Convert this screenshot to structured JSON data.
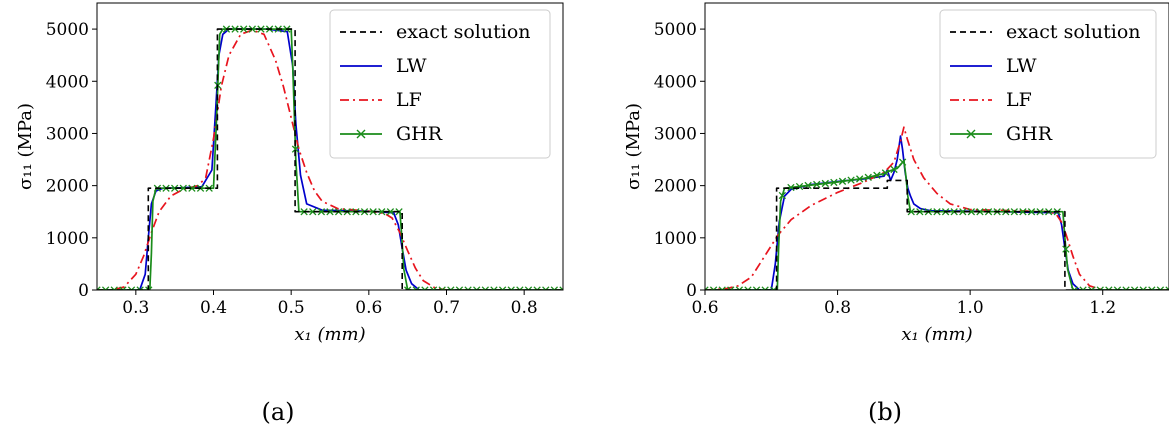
{
  "figure": {
    "panels": [
      {
        "label": "(a)"
      },
      {
        "label": "(b)"
      }
    ]
  },
  "chart_data": [
    {
      "type": "line",
      "panel": "(a)",
      "xlabel": "x₁ (mm)",
      "ylabel": "σ₁₁ (MPa)",
      "xlim": [
        0.25,
        0.85
      ],
      "ylim": [
        0,
        5500
      ],
      "xticks": [
        0.3,
        0.4,
        0.5,
        0.6,
        0.7,
        0.8
      ],
      "xtick_labels": [
        "0.3",
        "0.4",
        "0.5",
        "0.6",
        "0.7",
        "0.8"
      ],
      "yticks": [
        0,
        1000,
        2000,
        3000,
        4000,
        5000
      ],
      "ytick_labels": [
        "0",
        "1000",
        "2000",
        "3000",
        "4000",
        "5000"
      ],
      "legend": "top-right",
      "grid": false,
      "series": [
        {
          "name": "exact solution",
          "color": "#000000",
          "style": "dashed",
          "x": [
            0.25,
            0.316,
            0.316,
            0.405,
            0.405,
            0.505,
            0.505,
            0.643,
            0.643,
            0.85
          ],
          "y": [
            0,
            0,
            1950,
            1950,
            5000,
            5000,
            1500,
            1500,
            0,
            0
          ]
        },
        {
          "name": "LW",
          "color": "#0000cc",
          "style": "solid",
          "x": [
            0.25,
            0.305,
            0.312,
            0.316,
            0.32,
            0.326,
            0.335,
            0.36,
            0.385,
            0.398,
            0.403,
            0.407,
            0.412,
            0.42,
            0.44,
            0.47,
            0.495,
            0.502,
            0.506,
            0.512,
            0.52,
            0.54,
            0.6,
            0.632,
            0.638,
            0.643,
            0.648,
            0.655,
            0.665,
            0.85
          ],
          "y": [
            0,
            0,
            300,
            1000,
            1650,
            1900,
            1950,
            1960,
            1980,
            2300,
            3500,
            4500,
            4900,
            5000,
            5000,
            5000,
            4950,
            4300,
            3200,
            2200,
            1650,
            1530,
            1510,
            1480,
            1250,
            800,
            380,
            120,
            0,
            0
          ]
        },
        {
          "name": "LF",
          "color": "#e8141e",
          "style": "dashdot",
          "x": [
            0.25,
            0.27,
            0.285,
            0.3,
            0.31,
            0.32,
            0.33,
            0.345,
            0.36,
            0.38,
            0.39,
            0.4,
            0.41,
            0.42,
            0.435,
            0.45,
            0.465,
            0.48,
            0.49,
            0.5,
            0.51,
            0.52,
            0.53,
            0.54,
            0.56,
            0.6,
            0.62,
            0.63,
            0.64,
            0.65,
            0.66,
            0.67,
            0.685,
            0.7,
            0.85
          ],
          "y": [
            0,
            0,
            60,
            300,
            650,
            1100,
            1500,
            1800,
            1920,
            2000,
            2150,
            2900,
            3900,
            4500,
            4900,
            4980,
            4900,
            4400,
            3900,
            3300,
            2700,
            2250,
            1900,
            1700,
            1560,
            1510,
            1470,
            1380,
            1100,
            750,
            420,
            180,
            40,
            0,
            0
          ]
        },
        {
          "name": "GHR",
          "color": "#1a8c1a",
          "style": "solid-x",
          "x": [
            0.25,
            0.318,
            0.32,
            0.322,
            0.326,
            0.4,
            0.404,
            0.408,
            0.412,
            0.5,
            0.502,
            0.506,
            0.51,
            0.64,
            0.642,
            0.645,
            0.65,
            0.85
          ],
          "y": [
            0,
            0,
            700,
            1700,
            1950,
            1950,
            3300,
            4900,
            5000,
            5000,
            4300,
            2500,
            1500,
            1500,
            1100,
            400,
            0,
            0
          ]
        }
      ]
    },
    {
      "type": "line",
      "panel": "(b)",
      "xlabel": "x₁ (mm)",
      "ylabel": "σ₁₁ (MPa)",
      "xlim": [
        0.6,
        1.3
      ],
      "ylim": [
        0,
        5500
      ],
      "xticks": [
        0.6,
        0.8,
        1.0,
        1.2
      ],
      "xtick_labels": [
        "0.6",
        "0.8",
        "1.0",
        "1.2"
      ],
      "yticks": [
        0,
        1000,
        2000,
        3000,
        4000,
        5000
      ],
      "ytick_labels": [
        "0",
        "1000",
        "2000",
        "3000",
        "4000",
        "5000"
      ],
      "legend": "top-right",
      "grid": false,
      "series": [
        {
          "name": "exact solution",
          "color": "#000000",
          "style": "dashed",
          "x": [
            0.6,
            0.708,
            0.708,
            0.875,
            0.875,
            0.905,
            0.905,
            1.143,
            1.143,
            1.3
          ],
          "y": [
            0,
            0,
            1950,
            1950,
            2100,
            2100,
            1500,
            1500,
            0,
            0
          ]
        },
        {
          "name": "LW",
          "color": "#0000cc",
          "style": "solid",
          "x": [
            0.6,
            0.7,
            0.706,
            0.712,
            0.72,
            0.73,
            0.76,
            0.8,
            0.84,
            0.87,
            0.875,
            0.88,
            0.885,
            0.89,
            0.895,
            0.898,
            0.902,
            0.906,
            0.91,
            0.915,
            0.925,
            0.94,
            1.0,
            1.133,
            1.138,
            1.143,
            1.148,
            1.155,
            1.165,
            1.3
          ],
          "y": [
            0,
            0,
            500,
            1300,
            1800,
            1930,
            2020,
            2080,
            2130,
            2180,
            2300,
            2100,
            2250,
            2500,
            2950,
            2700,
            2250,
            1950,
            1800,
            1650,
            1560,
            1520,
            1510,
            1480,
            1250,
            800,
            380,
            120,
            0,
            0
          ]
        },
        {
          "name": "LF",
          "color": "#e8141e",
          "style": "dashdot",
          "x": [
            0.6,
            0.63,
            0.65,
            0.67,
            0.69,
            0.71,
            0.73,
            0.76,
            0.8,
            0.84,
            0.87,
            0.885,
            0.895,
            0.9,
            0.905,
            0.915,
            0.93,
            0.95,
            0.97,
            1.0,
            1.12,
            1.13,
            1.138,
            1.145,
            1.155,
            1.165,
            1.18,
            1.2,
            1.3
          ],
          "y": [
            0,
            20,
            80,
            250,
            650,
            1050,
            1350,
            1620,
            1870,
            2070,
            2250,
            2450,
            2850,
            3120,
            2900,
            2500,
            2150,
            1850,
            1650,
            1540,
            1500,
            1450,
            1300,
            1050,
            650,
            300,
            80,
            0,
            0
          ]
        },
        {
          "name": "GHR",
          "color": "#1a8c1a",
          "style": "solid-x",
          "x": [
            0.6,
            0.709,
            0.711,
            0.714,
            0.72,
            0.76,
            0.8,
            0.84,
            0.87,
            0.88,
            0.89,
            0.895,
            0.9,
            0.903,
            0.906,
            0.91,
            1.14,
            1.143,
            1.147,
            1.155,
            1.3
          ],
          "y": [
            0,
            0,
            800,
            1700,
            1950,
            2010,
            2070,
            2140,
            2230,
            2290,
            2330,
            2400,
            2480,
            2200,
            1800,
            1500,
            1500,
            1000,
            400,
            0,
            0
          ]
        }
      ]
    }
  ]
}
